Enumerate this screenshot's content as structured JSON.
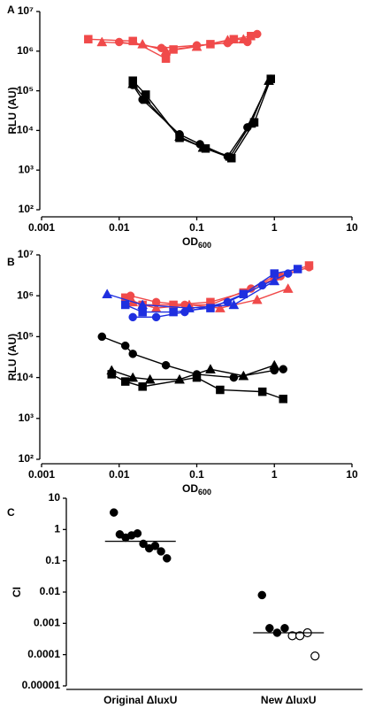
{
  "chart_data": [
    {
      "type": "log-scatter-line",
      "panel_label": "A",
      "ylabel": "RLU (AU)",
      "xlabel": "OD",
      "xlabel_subscript": "600",
      "log_x": true,
      "log_y": true,
      "xlim": [
        0.001,
        10
      ],
      "xticks": [
        0.001,
        0.01,
        0.1,
        1,
        10
      ],
      "ylim": [
        100,
        10000000
      ],
      "yticks": [
        {
          "value": 100,
          "label": "10²"
        },
        {
          "value": 1000,
          "label": "10³"
        },
        {
          "value": 10000,
          "label": "10⁴"
        },
        {
          "value": 100000,
          "label": "10⁵"
        },
        {
          "value": 1000000,
          "label": "10⁶"
        },
        {
          "value": 10000000,
          "label": "10⁷"
        }
      ],
      "series": [
        {
          "color": "#f04a4a",
          "marker": "square",
          "x": [
            0.004,
            0.015,
            0.04,
            0.05,
            0.15,
            0.3,
            0.5
          ],
          "values": [
            2000000,
            1800000,
            650000,
            1100000,
            1500000,
            2000000,
            2400000
          ]
        },
        {
          "color": "#f04a4a",
          "marker": "triangle",
          "x": [
            0.006,
            0.02,
            0.04,
            0.1,
            0.25,
            0.4
          ],
          "values": [
            1700000,
            1500000,
            1000000,
            1300000,
            1900000,
            2000000
          ]
        },
        {
          "color": "#f04a4a",
          "marker": "circle",
          "x": [
            0.01,
            0.035,
            0.1,
            0.25,
            0.45,
            0.6
          ],
          "values": [
            1700000,
            1200000,
            1400000,
            1600000,
            1700000,
            2700000
          ]
        },
        {
          "color": "#000000",
          "marker": "square",
          "x": [
            0.015,
            0.022,
            0.06,
            0.13,
            0.28,
            0.55,
            0.9
          ],
          "values": [
            180000,
            80000,
            6500,
            3500,
            2000,
            16000,
            200000
          ]
        },
        {
          "color": "#000000",
          "marker": "triangle",
          "x": [
            0.015,
            0.022,
            0.06,
            0.12,
            0.27,
            0.5,
            0.85
          ],
          "values": [
            150000,
            60000,
            7000,
            3700,
            2200,
            15000,
            180000
          ]
        },
        {
          "color": "#000000",
          "marker": "circle",
          "x": [
            0.015,
            0.02,
            0.06,
            0.11,
            0.25,
            0.45,
            0.9
          ],
          "values": [
            140000,
            60000,
            8000,
            4500,
            2200,
            12000,
            200000
          ]
        }
      ]
    },
    {
      "type": "log-scatter-line",
      "panel_label": "B",
      "ylabel": "RLU (AU)",
      "xlabel": "OD",
      "xlabel_subscript": "600",
      "log_x": true,
      "log_y": true,
      "xlim": [
        0.001,
        10
      ],
      "xticks": [
        0.001,
        0.01,
        0.1,
        1,
        10
      ],
      "ylim": [
        100,
        10000000
      ],
      "yticks": [
        {
          "value": 100,
          "label": "10²"
        },
        {
          "value": 1000,
          "label": "10³"
        },
        {
          "value": 10000,
          "label": "10⁴"
        },
        {
          "value": 100000,
          "label": "10⁵"
        },
        {
          "value": 1000000,
          "label": "10⁶"
        },
        {
          "value": 10000000,
          "label": "10⁷"
        }
      ],
      "series": [
        {
          "color": "#f04a4a",
          "marker": "square",
          "x": [
            0.012,
            0.02,
            0.05,
            0.15,
            0.4,
            1,
            2.8
          ],
          "values": [
            900000,
            600000,
            600000,
            700000,
            1200000,
            3000000,
            5500000
          ]
        },
        {
          "color": "#f04a4a",
          "marker": "triangle",
          "x": [
            0.015,
            0.03,
            0.08,
            0.2,
            0.6,
            1.5
          ],
          "values": [
            700000,
            500000,
            600000,
            500000,
            800000,
            1500000
          ]
        },
        {
          "color": "#f04a4a",
          "marker": "circle",
          "x": [
            0.014,
            0.03,
            0.07,
            0.15,
            0.5,
            1.2,
            2.8
          ],
          "values": [
            1000000,
            700000,
            600000,
            600000,
            1500000,
            3000000,
            5000000
          ]
        },
        {
          "color": "#1f2fe0",
          "marker": "square",
          "x": [
            0.012,
            0.02,
            0.05,
            0.15,
            0.4,
            1,
            2
          ],
          "values": [
            600000,
            400000,
            400000,
            500000,
            1100000,
            3500000,
            4500000
          ]
        },
        {
          "color": "#1f2fe0",
          "marker": "triangle",
          "x": [
            0.007,
            0.02,
            0.08,
            0.3,
            1
          ],
          "values": [
            1100000,
            600000,
            500000,
            600000,
            2300000
          ]
        },
        {
          "color": "#1f2fe0",
          "marker": "circle",
          "x": [
            0.015,
            0.03,
            0.07,
            0.25,
            0.7,
            1.5
          ],
          "values": [
            300000,
            300000,
            400000,
            700000,
            1800000,
            3500000
          ]
        },
        {
          "color": "#000000",
          "marker": "circle",
          "x": [
            0.006,
            0.012,
            0.015,
            0.04,
            0.1,
            0.3,
            1,
            1.3
          ],
          "values": [
            100000,
            60000,
            38000,
            20000,
            12000,
            10000,
            15000,
            16000
          ]
        },
        {
          "color": "#000000",
          "marker": "triangle",
          "x": [
            0.008,
            0.015,
            0.025,
            0.06,
            0.15,
            0.4,
            1
          ],
          "values": [
            15000,
            10000,
            9000,
            9000,
            16000,
            11000,
            20000
          ]
        },
        {
          "color": "#000000",
          "marker": "square",
          "x": [
            0.008,
            0.012,
            0.02,
            0.1,
            0.2,
            0.7,
            1.3
          ],
          "values": [
            12000,
            8000,
            6000,
            10000,
            5000,
            4500,
            3000
          ]
        }
      ]
    },
    {
      "type": "dot-plot",
      "panel_label": "C",
      "ylabel": "CI",
      "log_y": true,
      "ylim": [
        1e-05,
        10
      ],
      "yticks": [
        1e-05,
        0.0001,
        0.001,
        0.01,
        0.1,
        1,
        10
      ],
      "categories": [
        "Original ΔluxU",
        "New ΔluxU"
      ],
      "groups": [
        {
          "values": [
            3.5,
            0.7,
            0.55,
            0.65,
            0.75,
            0.35,
            0.25,
            0.3,
            0.2,
            0.12
          ]
        },
        {
          "values": [
            0.008,
            0.0007,
            0.0005,
            0.0007
          ],
          "open_values": [
            0.0004,
            0.0004,
            0.0005,
            9e-05
          ]
        }
      ],
      "medians": [
        0.42,
        0.0005
      ]
    }
  ]
}
